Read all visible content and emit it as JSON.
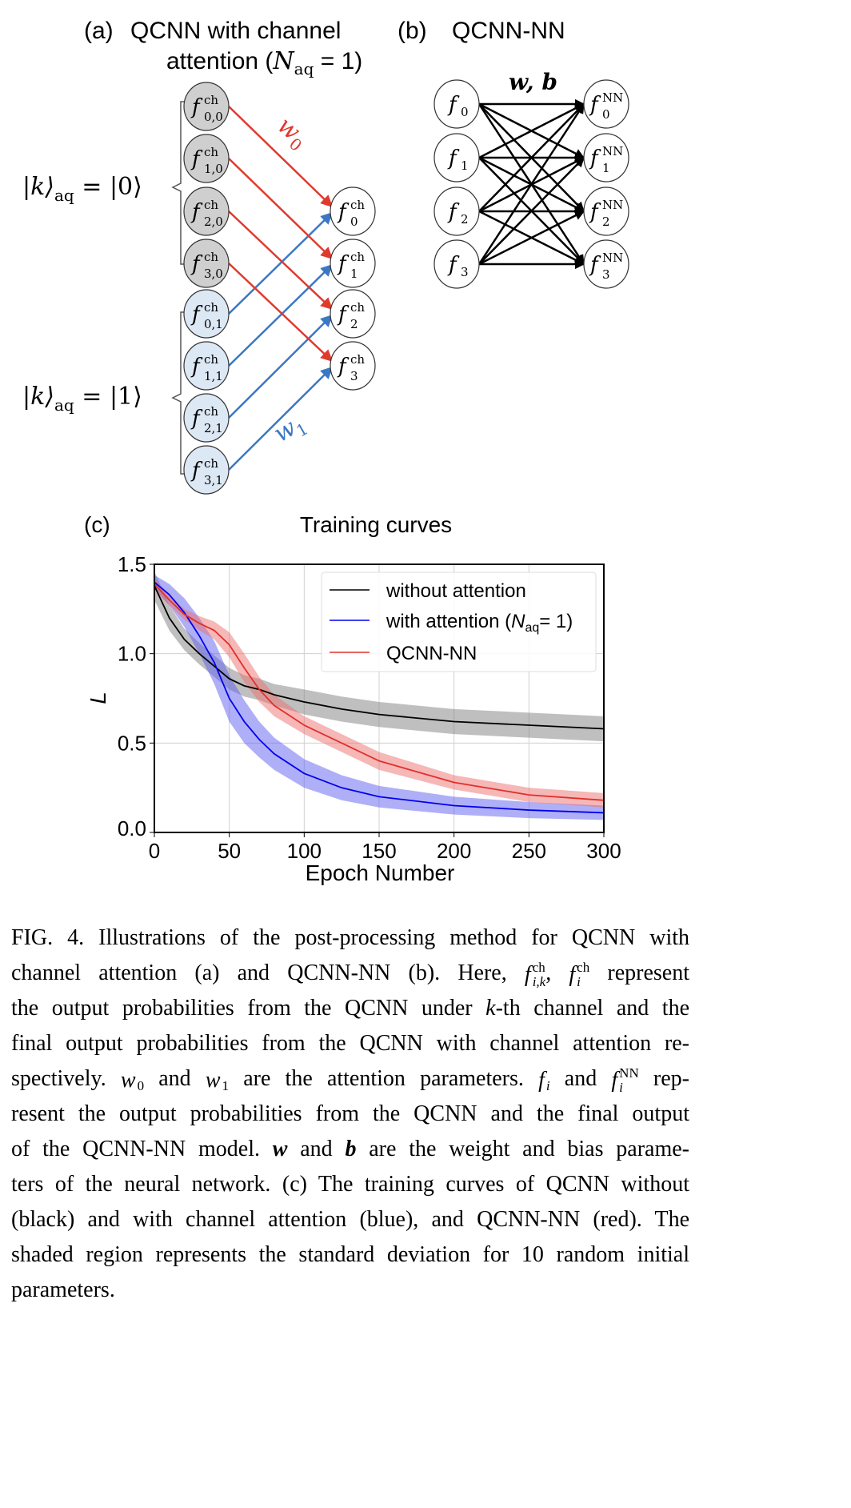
{
  "panel_a": {
    "label": "(a)",
    "title_line1": "QCNN with channel",
    "title_line2_pre": "attention (",
    "title_N": "N",
    "title_sub": "aq",
    "title_post": " = 1)",
    "group0_label": {
      "ket": "|k⟩",
      "sub": "aq",
      "rhs": " = |0⟩"
    },
    "group1_label": {
      "ket": "|k⟩",
      "sub": "aq",
      "rhs": " = |1⟩"
    },
    "w0_label": {
      "base": "w",
      "sub": "0"
    },
    "w1_label": {
      "base": "w",
      "sub": "1"
    },
    "inputs_k0": [
      {
        "base": "f",
        "sup": "ch",
        "sub": "0,0"
      },
      {
        "base": "f",
        "sup": "ch",
        "sub": "1,0"
      },
      {
        "base": "f",
        "sup": "ch",
        "sub": "2,0"
      },
      {
        "base": "f",
        "sup": "ch",
        "sub": "3,0"
      }
    ],
    "inputs_k1": [
      {
        "base": "f",
        "sup": "ch",
        "sub": "0,1"
      },
      {
        "base": "f",
        "sup": "ch",
        "sub": "1,1"
      },
      {
        "base": "f",
        "sup": "ch",
        "sub": "2,1"
      },
      {
        "base": "f",
        "sup": "ch",
        "sub": "3,1"
      }
    ],
    "outputs": [
      {
        "base": "f",
        "sup": "ch",
        "sub": "0"
      },
      {
        "base": "f",
        "sup": "ch",
        "sub": "1"
      },
      {
        "base": "f",
        "sup": "ch",
        "sub": "2"
      },
      {
        "base": "f",
        "sup": "ch",
        "sub": "3"
      }
    ],
    "colors": {
      "k0_fill": "#cfcfcf",
      "k1_fill": "#dde8f5",
      "w0_arrow": "#e03a2c",
      "w1_arrow": "#3a78c4"
    }
  },
  "panel_b": {
    "label": "(b)",
    "title": "QCNN-NN",
    "params_label": "w, b",
    "inputs": [
      {
        "base": "f",
        "sub": "0"
      },
      {
        "base": "f",
        "sub": "1"
      },
      {
        "base": "f",
        "sub": "2"
      },
      {
        "base": "f",
        "sub": "3"
      }
    ],
    "outputs": [
      {
        "base": "f",
        "sup": "NN",
        "sub": "0"
      },
      {
        "base": "f",
        "sup": "NN",
        "sub": "1"
      },
      {
        "base": "f",
        "sup": "NN",
        "sub": "2"
      },
      {
        "base": "f",
        "sup": "NN",
        "sub": "3"
      }
    ]
  },
  "chart_data": {
    "type": "line",
    "panel_label": "(c)",
    "title": "Training curves",
    "xlabel": "Epoch Number",
    "ylabel": "L",
    "xlim": [
      0,
      300
    ],
    "ylim": [
      0,
      1.5
    ],
    "xticks": [
      "0",
      "50",
      "100",
      "150",
      "200",
      "250",
      "300"
    ],
    "yticks": [
      "0.0",
      "0.5",
      "1.0",
      "1.5"
    ],
    "grid": true,
    "legend_placement": "top-right",
    "x": [
      0,
      10,
      20,
      30,
      40,
      50,
      60,
      70,
      80,
      100,
      125,
      150,
      200,
      250,
      300
    ],
    "series": [
      {
        "name": "without attention",
        "color": "#000000",
        "band_color": "#808080",
        "values": [
          1.38,
          1.2,
          1.08,
          1.0,
          0.93,
          0.86,
          0.82,
          0.8,
          0.77,
          0.73,
          0.69,
          0.66,
          0.62,
          0.6,
          0.58
        ],
        "std": [
          0.08,
          0.07,
          0.06,
          0.06,
          0.06,
          0.06,
          0.06,
          0.06,
          0.06,
          0.07,
          0.07,
          0.07,
          0.07,
          0.07,
          0.07
        ]
      },
      {
        "name": "with attention (N_aq= 1)",
        "legend_pre": "with attention (",
        "legend_N": "N",
        "legend_sub": "aq",
        "legend_post": "= 1)",
        "color": "#0000ee",
        "band_color": "#6060f0",
        "values": [
          1.4,
          1.33,
          1.23,
          1.1,
          0.95,
          0.75,
          0.62,
          0.52,
          0.44,
          0.33,
          0.25,
          0.2,
          0.15,
          0.125,
          0.11
        ],
        "std": [
          0.04,
          0.06,
          0.08,
          0.1,
          0.12,
          0.13,
          0.12,
          0.1,
          0.09,
          0.08,
          0.07,
          0.06,
          0.05,
          0.045,
          0.04
        ]
      },
      {
        "name": "QCNN-NN",
        "color": "#e0302a",
        "band_color": "#ee7070",
        "values": [
          1.39,
          1.3,
          1.22,
          1.17,
          1.13,
          1.05,
          0.92,
          0.8,
          0.71,
          0.6,
          0.5,
          0.4,
          0.28,
          0.21,
          0.18
        ],
        "std": [
          0.03,
          0.03,
          0.03,
          0.04,
          0.05,
          0.07,
          0.08,
          0.07,
          0.06,
          0.05,
          0.05,
          0.05,
          0.04,
          0.04,
          0.04
        ]
      }
    ]
  },
  "caption": {
    "lines": [
      [
        {
          "t": "FIG. 4. Illustrations of the post-processing method for QCNN with"
        }
      ],
      [
        {
          "t": "channel attention (a) and QCNN-NN (b). Here, "
        },
        {
          "base": "f",
          "sup": "ch",
          "sub": "i,k"
        },
        {
          "t": ", "
        },
        {
          "base": "f",
          "sup": "ch",
          "sub": "i"
        },
        {
          "t": " represent"
        }
      ],
      [
        {
          "t": "the output probabilities from the QCNN under "
        },
        {
          "t": "k",
          "i": true
        },
        {
          "t": "-th channel and the"
        }
      ],
      [
        {
          "t": "final output probabilities from the QCNN with channel attention re-"
        }
      ],
      [
        {
          "t": "spectively. "
        },
        {
          "base": "w",
          "sub": "0"
        },
        {
          "t": " and "
        },
        {
          "base": "w",
          "sub": "1"
        },
        {
          "t": " are the attention parameters. "
        },
        {
          "base": "f",
          "sub": "i"
        },
        {
          "t": " and "
        },
        {
          "base": "f",
          "sup": "NN",
          "sub": "i"
        },
        {
          "t": " rep-"
        }
      ],
      [
        {
          "t": "resent the output probabilities from the QCNN and the final output"
        }
      ],
      [
        {
          "t": "of the QCNN-NN model. "
        },
        {
          "t": "w",
          "b": true
        },
        {
          "t": " and "
        },
        {
          "t": "b",
          "b": true
        },
        {
          "t": " are the weight and bias parame-"
        }
      ],
      [
        {
          "t": "ters of the neural network. (c) The training curves of QCNN without"
        }
      ],
      [
        {
          "t": "(black) and with channel attention (blue), and QCNN-NN (red). The"
        }
      ],
      [
        {
          "t": "shaded region represents the standard deviation for 10 random initial"
        }
      ],
      [
        {
          "t": "parameters."
        }
      ]
    ]
  }
}
